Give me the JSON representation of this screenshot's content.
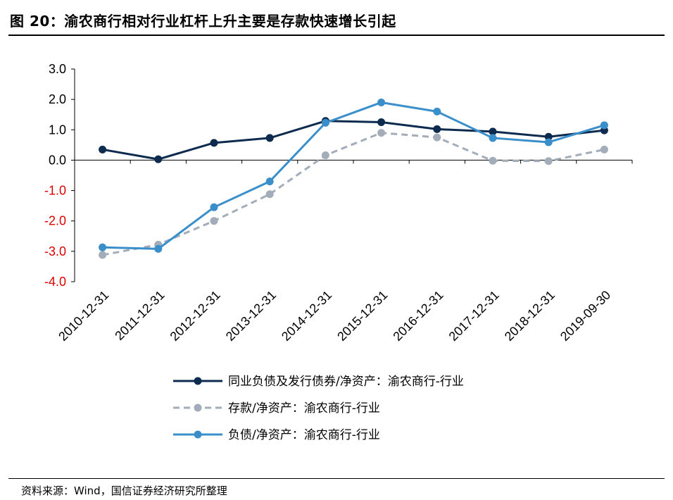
{
  "figure": {
    "title": "图 20：渝农商行相对行业杠杆上升主要是存款快速增长引起",
    "source": "资料来源：Wind，国信证券经济研究所整理"
  },
  "chart_data": {
    "type": "line",
    "title": "",
    "xlabel": "",
    "ylabel": "",
    "ylim": [
      -4.0,
      3.0
    ],
    "yticks": [
      3.0,
      2.0,
      1.0,
      0.0,
      -1.0,
      -2.0,
      -3.0,
      -4.0
    ],
    "ytick_labels": [
      "3.0",
      "2.0",
      "1.0",
      "0.0",
      "-1.0",
      "-2.0",
      "-3.0",
      "-4.0"
    ],
    "negative_tick_color": "#e00000",
    "grid": false,
    "legend_position": "bottom",
    "categories": [
      "2010-12-31",
      "2011-12-31",
      "2012-12-31",
      "2013-12-31",
      "2014-12-31",
      "2015-12-31",
      "2016-12-31",
      "2017-12-31",
      "2018-12-31",
      "2019-09-30"
    ],
    "series": [
      {
        "name": "同业负债及发行债券/净资产：渝农商行-行业",
        "color": "#0d2b4f",
        "dash": "solid",
        "values": [
          0.35,
          0.03,
          0.57,
          0.73,
          1.29,
          1.25,
          1.02,
          0.94,
          0.77,
          0.98
        ]
      },
      {
        "name": "存款/净资产：渝农商行-行业",
        "color": "#a3adb9",
        "dash": "dashed",
        "values": [
          -3.12,
          -2.78,
          -2.0,
          -1.12,
          0.16,
          0.9,
          0.75,
          -0.02,
          -0.03,
          0.35
        ]
      },
      {
        "name": "负债/净资产：渝农商行-行业",
        "color": "#3a8fcb",
        "dash": "solid",
        "values": [
          -2.87,
          -2.92,
          -1.55,
          -0.7,
          1.23,
          1.9,
          1.6,
          0.73,
          0.59,
          1.15
        ]
      }
    ]
  }
}
